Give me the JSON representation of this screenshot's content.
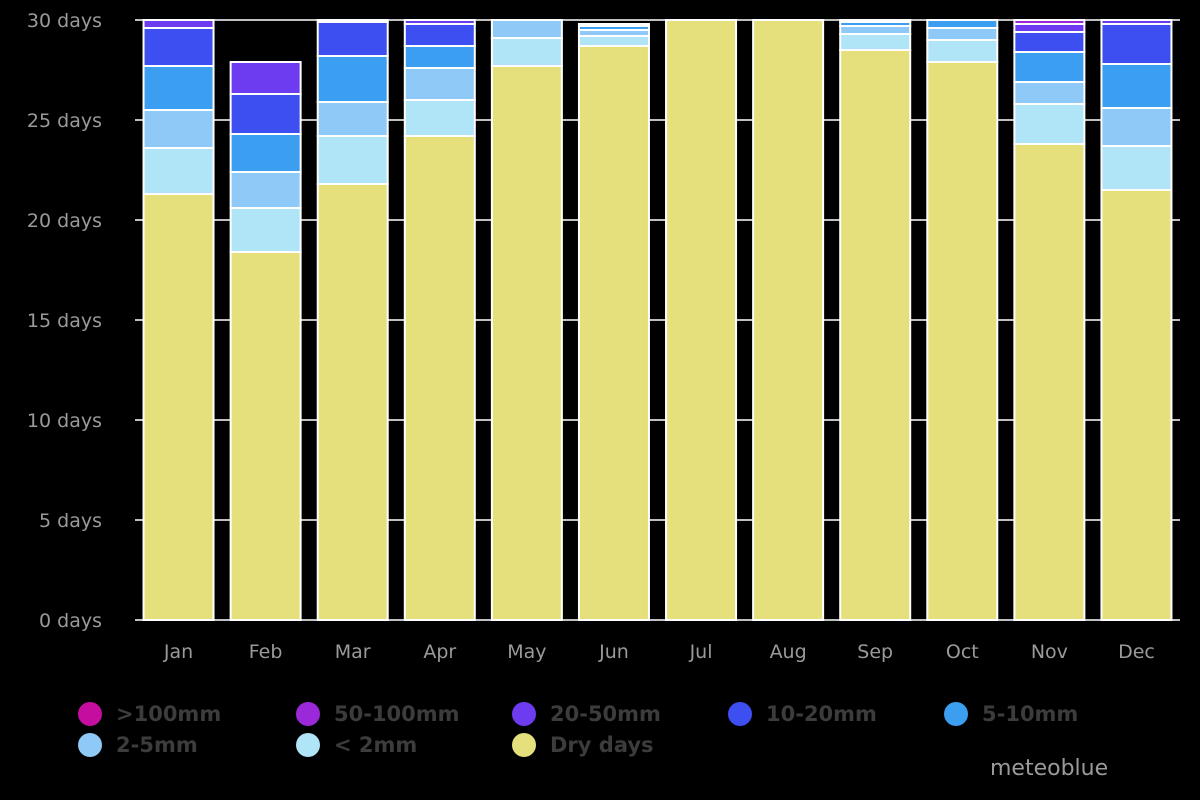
{
  "chart_data": {
    "type": "bar",
    "stacked": true,
    "categories": [
      "Jan",
      "Feb",
      "Mar",
      "Apr",
      "May",
      "Jun",
      "Jul",
      "Aug",
      "Sep",
      "Oct",
      "Nov",
      "Dec"
    ],
    "ylim": [
      0,
      30
    ],
    "yticks": [
      0,
      5,
      10,
      15,
      20,
      25,
      30
    ],
    "ytick_labels": [
      "0 days",
      "5 days",
      "10 days",
      "15 days",
      "20 days",
      "25 days",
      "30 days"
    ],
    "grid": true,
    "legend_position": "bottom",
    "series": [
      {
        "name": "Dry days",
        "color": "#e5e07c",
        "values": [
          21.3,
          18.4,
          21.8,
          24.2,
          27.7,
          28.7,
          31,
          31,
          28.5,
          27.9,
          23.8,
          21.5
        ]
      },
      {
        "name": "< 2mm",
        "color": "#b0e4f7",
        "values": [
          2.3,
          2.2,
          2.4,
          1.8,
          1.4,
          0.5,
          0,
          0,
          0.8,
          1.1,
          2.0,
          2.2
        ]
      },
      {
        "name": "2-5mm",
        "color": "#8ec9f7",
        "values": [
          1.9,
          1.8,
          1.7,
          1.6,
          1.0,
          0.3,
          0,
          0,
          0.4,
          0.6,
          1.1,
          1.9
        ]
      },
      {
        "name": "5-10mm",
        "color": "#3b9ef0",
        "values": [
          2.2,
          1.9,
          2.3,
          1.1,
          0.5,
          0.2,
          0,
          0,
          0.2,
          0.5,
          1.5,
          2.2
        ]
      },
      {
        "name": "10-20mm",
        "color": "#3d4ff0",
        "values": [
          1.9,
          2.0,
          1.7,
          1.1,
          0.3,
          0.1,
          0,
          0,
          0.1,
          0.3,
          1.0,
          2.0
        ]
      },
      {
        "name": "20-50mm",
        "color": "#6d3bf0",
        "values": [
          0.5,
          1.6,
          0.4,
          0.3,
          0,
          0,
          0,
          0,
          0,
          0,
          0.4,
          0.3
        ]
      },
      {
        "name": "50-100mm",
        "color": "#9b29d9",
        "values": [
          0,
          0,
          0,
          0,
          0,
          0,
          0,
          0,
          0,
          0,
          0.2,
          0
        ]
      },
      {
        "name": ">100mm",
        "color": "#c50d9f",
        "values": [
          0,
          0,
          0,
          0,
          0,
          0,
          0,
          0,
          0,
          0,
          0,
          0
        ]
      }
    ]
  },
  "legend": [
    {
      "label": ">100mm",
      "color": "#c50d9f"
    },
    {
      "label": "50-100mm",
      "color": "#9b29d9"
    },
    {
      "label": "20-50mm",
      "color": "#6d3bf0"
    },
    {
      "label": "10-20mm",
      "color": "#3d4ff0"
    },
    {
      "label": "5-10mm",
      "color": "#3b9ef0"
    },
    {
      "label": "2-5mm",
      "color": "#8ec9f7"
    },
    {
      "label": "< 2mm",
      "color": "#b0e4f7"
    },
    {
      "label": "Dry days",
      "color": "#e5e07c"
    }
  ],
  "brand": "meteoblue"
}
